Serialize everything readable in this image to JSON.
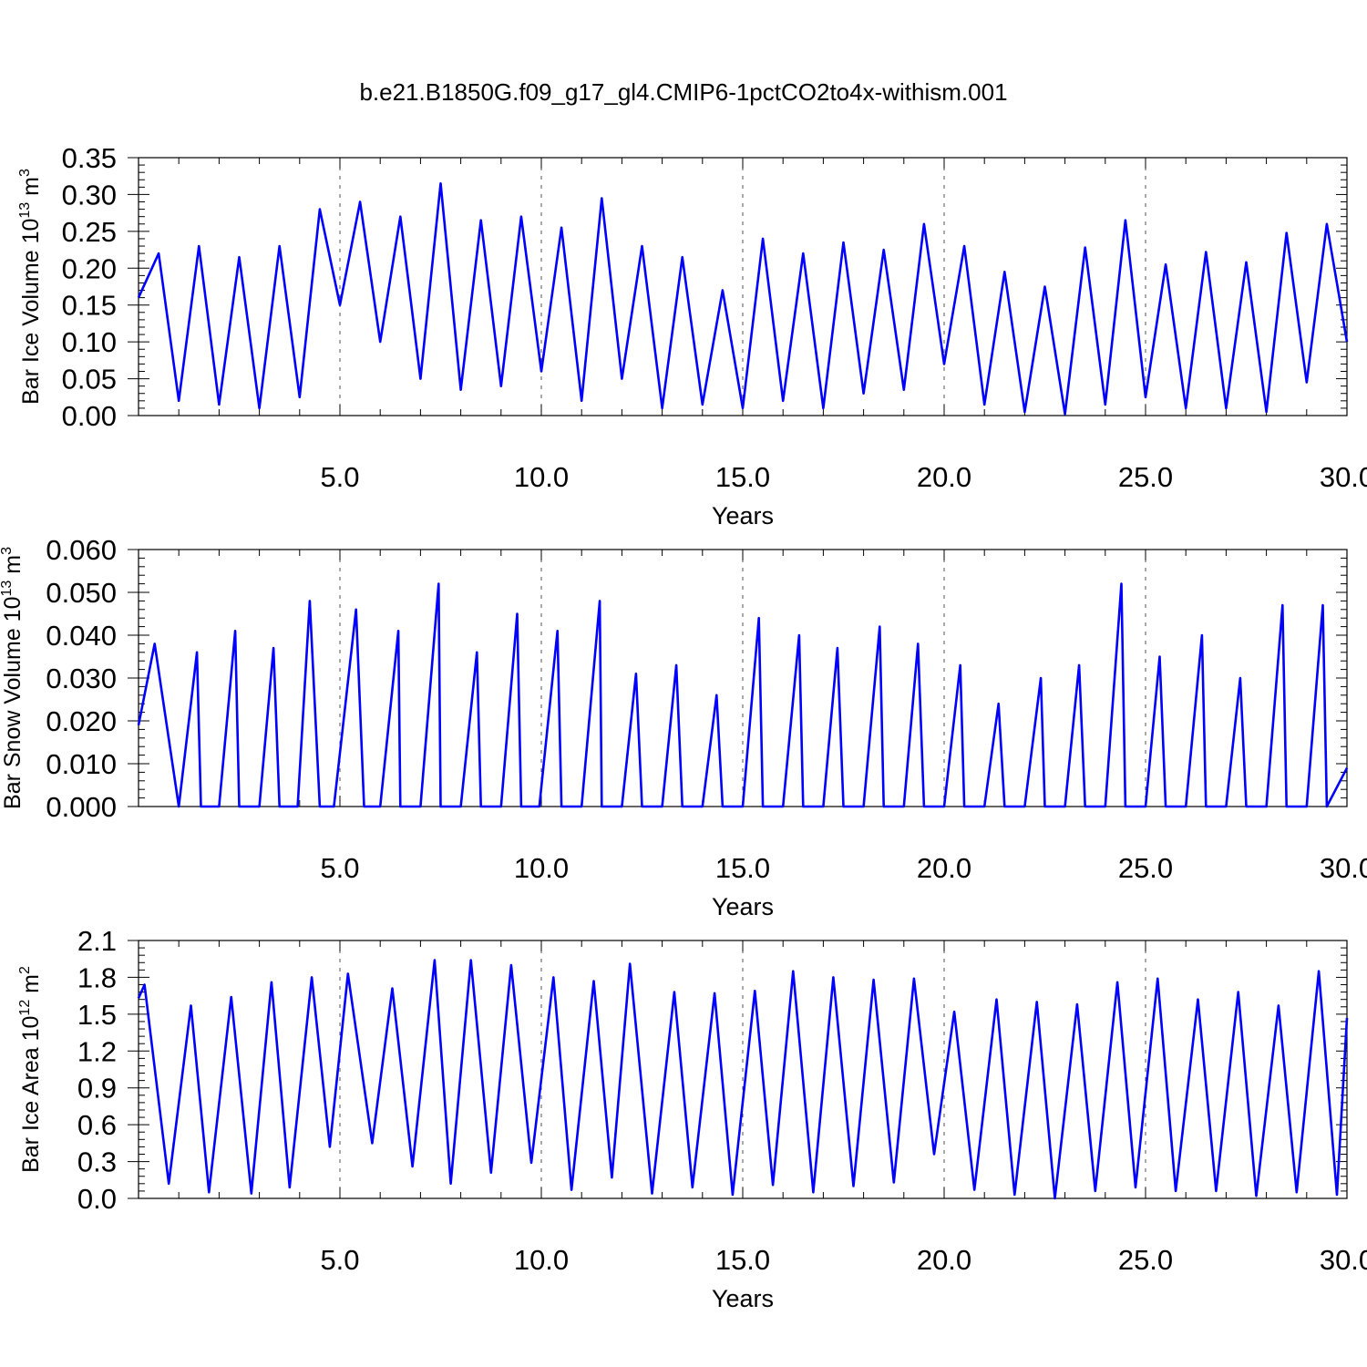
{
  "title": "b.e21.B1850G.f09_g17_gl4.CMIP6-1pctCO2to4x-withism.001",
  "colors": {
    "series": "#0000ff",
    "axis": "#000000",
    "grid": "#555555"
  },
  "chart_data": [
    {
      "type": "line",
      "title": "",
      "xlabel": "Years",
      "ylabel": {
        "text": "Bar Ice Volume 10",
        "exp": "13",
        "unit": " m",
        "unit_exp": "3"
      },
      "xlim": [
        0.0,
        30.0
      ],
      "ylim": [
        0.0,
        0.35
      ],
      "x_ticks": [
        5.0,
        10.0,
        15.0,
        20.0,
        25.0,
        30.0
      ],
      "x_tick_labels": [
        "5.0",
        "10.0",
        "15.0",
        "20.0",
        "25.0",
        "30.0"
      ],
      "y_ticks": [
        0.0,
        0.05,
        0.1,
        0.15,
        0.2,
        0.25,
        0.3,
        0.35
      ],
      "y_tick_labels": [
        "0.00",
        "0.05",
        "0.10",
        "0.15",
        "0.20",
        "0.25",
        "0.30",
        "0.35"
      ],
      "grid": "dashed vertical lines at x ticks",
      "series": [
        {
          "x": [
            0.0,
            0.5,
            1.0,
            1.5,
            2.0,
            2.5,
            3.0,
            3.5,
            4.0,
            4.5,
            5.0,
            5.5,
            6.0,
            6.5,
            7.0,
            7.5,
            8.0,
            8.5,
            9.0,
            9.5,
            10.0,
            10.5,
            11.0,
            11.5,
            12.0,
            12.5,
            13.0,
            13.5,
            14.0,
            14.5,
            15.0,
            15.5,
            16.0,
            16.5,
            17.0,
            17.5,
            18.0,
            18.5,
            19.0,
            19.5,
            20.0,
            20.5,
            21.0,
            21.5,
            22.0,
            22.5,
            23.0,
            23.5,
            24.0,
            24.5,
            25.0,
            25.5,
            26.0,
            26.5,
            27.0,
            27.5,
            28.0,
            28.5,
            29.0,
            29.5,
            30.0
          ],
          "y": [
            0.16,
            0.22,
            0.02,
            0.23,
            0.015,
            0.215,
            0.01,
            0.23,
            0.025,
            0.28,
            0.15,
            0.29,
            0.1,
            0.27,
            0.05,
            0.315,
            0.035,
            0.265,
            0.04,
            0.27,
            0.06,
            0.255,
            0.02,
            0.295,
            0.05,
            0.23,
            0.01,
            0.215,
            0.015,
            0.17,
            0.01,
            0.24,
            0.02,
            0.22,
            0.01,
            0.235,
            0.03,
            0.225,
            0.035,
            0.26,
            0.07,
            0.23,
            0.015,
            0.195,
            0.005,
            0.175,
            0.002,
            0.228,
            0.015,
            0.265,
            0.025,
            0.205,
            0.01,
            0.222,
            0.01,
            0.208,
            0.005,
            0.248,
            0.045,
            0.26,
            0.1
          ]
        }
      ]
    },
    {
      "type": "line",
      "title": "",
      "xlabel": "Years",
      "ylabel": {
        "text": "Bar Snow Volume 10",
        "exp": "13",
        "unit": " m",
        "unit_exp": "3"
      },
      "xlim": [
        0.0,
        30.0
      ],
      "ylim": [
        0.0,
        0.06
      ],
      "x_ticks": [
        5.0,
        10.0,
        15.0,
        20.0,
        25.0,
        30.0
      ],
      "x_tick_labels": [
        "5.0",
        "10.0",
        "15.0",
        "20.0",
        "25.0",
        "30.0"
      ],
      "y_ticks": [
        0.0,
        0.01,
        0.02,
        0.03,
        0.04,
        0.05,
        0.06
      ],
      "y_tick_labels": [
        "0.000",
        "0.010",
        "0.020",
        "0.030",
        "0.040",
        "0.050",
        "0.060"
      ],
      "grid": "dashed vertical lines at x ticks",
      "series": [
        {
          "x": [
            0.0,
            0.4,
            1.0,
            1.45,
            1.55,
            2.0,
            2.4,
            2.5,
            3.0,
            3.35,
            3.5,
            3.95,
            4.25,
            4.5,
            4.85,
            5.4,
            5.6,
            6.0,
            6.45,
            6.5,
            7.0,
            7.45,
            7.5,
            8.0,
            8.4,
            8.5,
            9.0,
            9.4,
            9.5,
            9.95,
            10.4,
            10.5,
            11.0,
            11.45,
            11.5,
            12.0,
            12.35,
            12.5,
            13.0,
            13.35,
            13.5,
            14.0,
            14.35,
            14.5,
            15.0,
            15.4,
            15.5,
            16.0,
            16.4,
            16.5,
            17.0,
            17.35,
            17.5,
            18.0,
            18.4,
            18.5,
            19.0,
            19.35,
            19.5,
            20.0,
            20.4,
            20.5,
            21.0,
            21.35,
            21.5,
            22.0,
            22.4,
            22.5,
            23.0,
            23.35,
            23.5,
            24.0,
            24.4,
            24.5,
            25.0,
            25.35,
            25.5,
            26.0,
            26.4,
            26.5,
            27.0,
            27.35,
            27.5,
            28.0,
            28.4,
            28.5,
            29.0,
            29.4,
            29.5,
            30.0
          ],
          "y": [
            0.019,
            0.038,
            0.0,
            0.036,
            0.0,
            0.0,
            0.041,
            0.0,
            0.0,
            0.037,
            0.0,
            0.0,
            0.048,
            0.0,
            0.0,
            0.046,
            0.0,
            0.0,
            0.041,
            0.0,
            0.0,
            0.052,
            0.0,
            0.0,
            0.036,
            0.0,
            0.0,
            0.045,
            0.0,
            0.0,
            0.041,
            0.0,
            0.0,
            0.048,
            0.0,
            0.0,
            0.031,
            0.0,
            0.0,
            0.033,
            0.0,
            0.0,
            0.026,
            0.0,
            0.0,
            0.044,
            0.0,
            0.0,
            0.04,
            0.0,
            0.0,
            0.037,
            0.0,
            0.0,
            0.042,
            0.0,
            0.0,
            0.038,
            0.0,
            0.0,
            0.033,
            0.0,
            0.0,
            0.024,
            0.0,
            0.0,
            0.03,
            0.0,
            0.0,
            0.033,
            0.0,
            0.0,
            0.052,
            0.0,
            0.0,
            0.035,
            0.0,
            0.0,
            0.04,
            0.0,
            0.0,
            0.03,
            0.0,
            0.0,
            0.047,
            0.0,
            0.0,
            0.047,
            0.0,
            0.009
          ]
        }
      ]
    },
    {
      "type": "line",
      "title": "",
      "xlabel": "Years",
      "ylabel": {
        "text": "Bar Ice Area 10",
        "exp": "12",
        "unit": " m",
        "unit_exp": "2"
      },
      "xlim": [
        0.0,
        30.0
      ],
      "ylim": [
        0.0,
        2.1
      ],
      "x_ticks": [
        5.0,
        10.0,
        15.0,
        20.0,
        25.0,
        30.0
      ],
      "x_tick_labels": [
        "5.0",
        "10.0",
        "15.0",
        "20.0",
        "25.0",
        "30.0"
      ],
      "y_ticks": [
        0.0,
        0.3,
        0.6,
        0.9,
        1.2,
        1.5,
        1.8,
        2.1
      ],
      "y_tick_labels": [
        "0.0",
        "0.3",
        "0.6",
        "0.9",
        "1.2",
        "1.5",
        "1.8",
        "2.1"
      ],
      "grid": "dashed vertical lines at x ticks",
      "series": [
        {
          "x": [
            0.0,
            0.15,
            0.75,
            1.3,
            1.75,
            2.3,
            2.8,
            3.3,
            3.75,
            4.3,
            4.75,
            5.2,
            5.8,
            6.3,
            6.8,
            7.35,
            7.75,
            8.25,
            8.75,
            9.25,
            9.75,
            10.3,
            10.75,
            11.3,
            11.75,
            12.2,
            12.75,
            13.3,
            13.75,
            14.3,
            14.75,
            15.3,
            15.75,
            16.25,
            16.75,
            17.25,
            17.75,
            18.25,
            18.75,
            19.25,
            19.75,
            20.25,
            20.75,
            21.3,
            21.75,
            22.3,
            22.75,
            23.3,
            23.75,
            24.3,
            24.75,
            25.3,
            25.75,
            26.3,
            26.75,
            27.3,
            27.75,
            28.3,
            28.75,
            29.3,
            29.75,
            30.0
          ],
          "y": [
            1.63,
            1.74,
            0.12,
            1.57,
            0.05,
            1.64,
            0.04,
            1.76,
            0.09,
            1.8,
            0.42,
            1.83,
            0.45,
            1.71,
            0.26,
            1.94,
            0.12,
            1.94,
            0.21,
            1.9,
            0.29,
            1.8,
            0.07,
            1.77,
            0.17,
            1.91,
            0.04,
            1.68,
            0.09,
            1.67,
            0.03,
            1.69,
            0.11,
            1.85,
            0.05,
            1.8,
            0.1,
            1.78,
            0.13,
            1.79,
            0.36,
            1.52,
            0.07,
            1.62,
            0.03,
            1.6,
            0.0,
            1.58,
            0.06,
            1.76,
            0.09,
            1.79,
            0.06,
            1.62,
            0.06,
            1.68,
            0.02,
            1.57,
            0.05,
            1.85,
            0.03,
            1.47
          ]
        }
      ]
    }
  ]
}
